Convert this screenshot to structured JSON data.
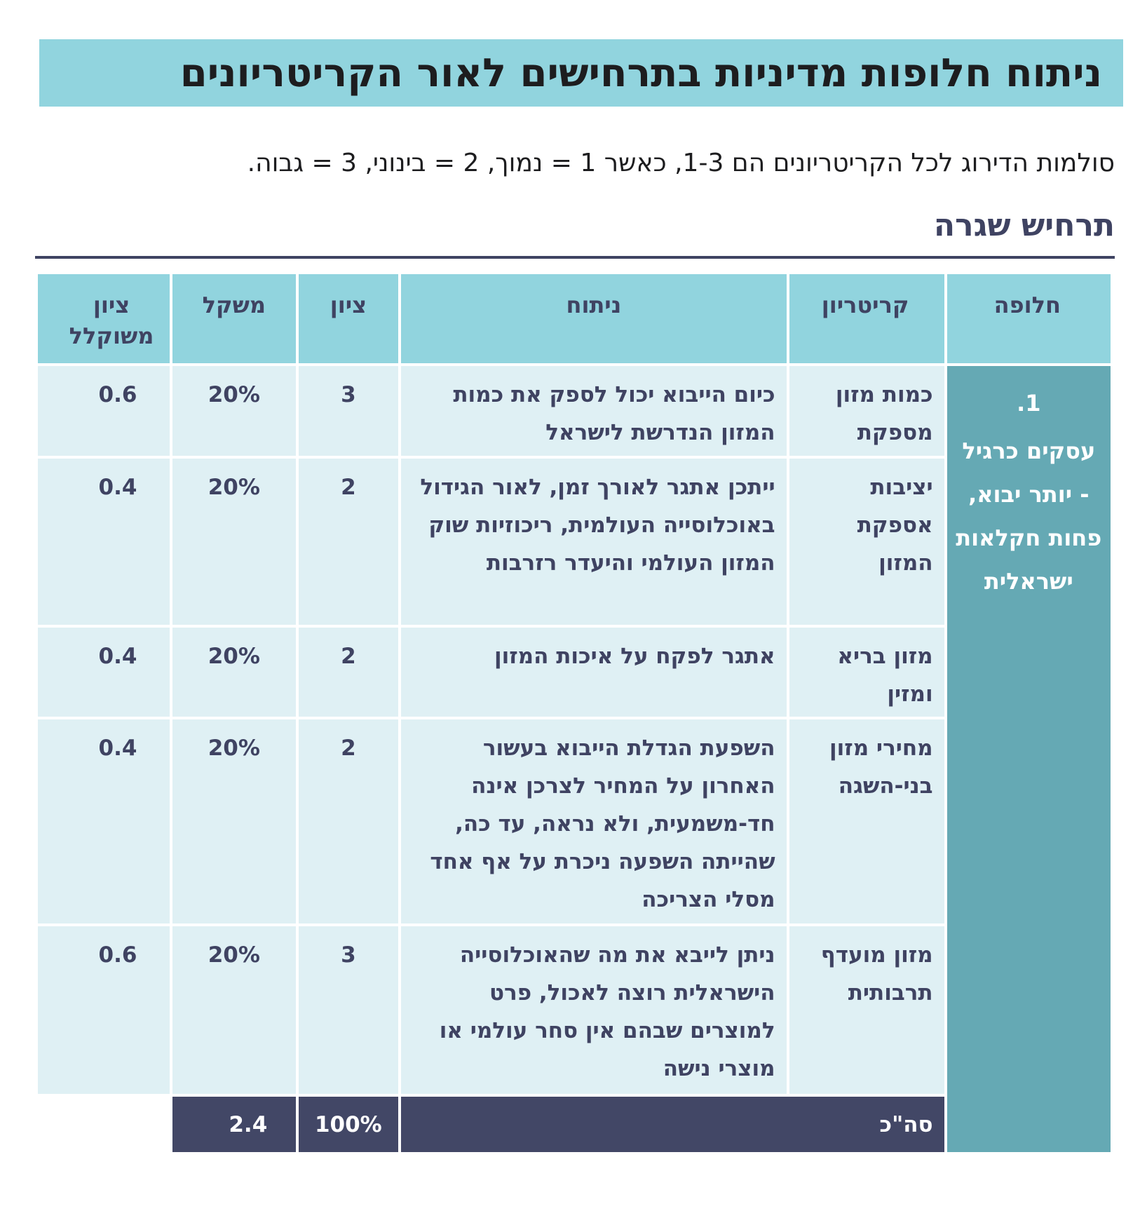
{
  "title": "ניתוח חלופות מדיניות בתרחישים לאור הקריטריונים",
  "scale_note": "סולמות הדירוג לכל הקריטריונים הם 1-3, כאשר 1 = נמוך, 2 = בינוני, 3 = גבוה.",
  "scenario_title": "תרחיש שגרה",
  "table": {
    "headers": {
      "alternative": "חלופה",
      "criterion": "קריטריון",
      "analysis": "ניתוח",
      "score": "ציון",
      "weight": "משקל",
      "weighted_score_line1": "ציון",
      "weighted_score_line2": "משוקלל"
    },
    "alternative": {
      "number": "1.",
      "label": "עסקים כרגיל - יותר יבוא, פחות חקלאות ישראלית"
    },
    "rows": [
      {
        "criterion": "כמות מזון מספקת",
        "analysis": "כיום הייבוא יכול לספק את כמות המזון הנדרשת לישראל",
        "score": "3",
        "weight": "20%",
        "weighted": "0.6"
      },
      {
        "criterion": "יציבות אספקת המזון",
        "analysis": "ייתכן אתגר לאורך זמן, לאור הגידול באוכלוסייה העולמית, ריכוזיות שוק המזון העולמי והיעדר רזרבות",
        "score": "2",
        "weight": "20%",
        "weighted": "0.4"
      },
      {
        "criterion": "מזון בריא ומזין",
        "analysis": "אתגר לפקח על איכות המזון",
        "score": "2",
        "weight": "20%",
        "weighted": "0.4"
      },
      {
        "criterion": "מחירי מזון בני-השגה",
        "analysis": "השפעת הגדלת הייבוא בעשור האחרון על המחיר לצרכן אינה חד-משמעית, ולא נראה, עד כה, שהייתה השפעה ניכרת על אף אחד מסלי הצריכה",
        "score": "2",
        "weight": "20%",
        "weighted": "0.4"
      },
      {
        "criterion": "מזון מועדף תרבותית",
        "analysis": "ניתן לייבא את מה שהאוכלוסייה הישראלית רוצה לאכול, פרט למוצרים שבהם אין סחר עולמי או מוצרי נישה",
        "score": "3",
        "weight": "20%",
        "weighted": "0.6"
      }
    ],
    "total": {
      "label": "סה\"כ",
      "weight": "100%",
      "weighted": "2.4"
    }
  },
  "colors": {
    "title_band": "#91d4de",
    "header_bg": "#91d4de",
    "row_bg": "#dff0f4",
    "alternative_bg": "#65a9b4",
    "total_bg": "#424766",
    "text_navy": "#3f4362"
  }
}
